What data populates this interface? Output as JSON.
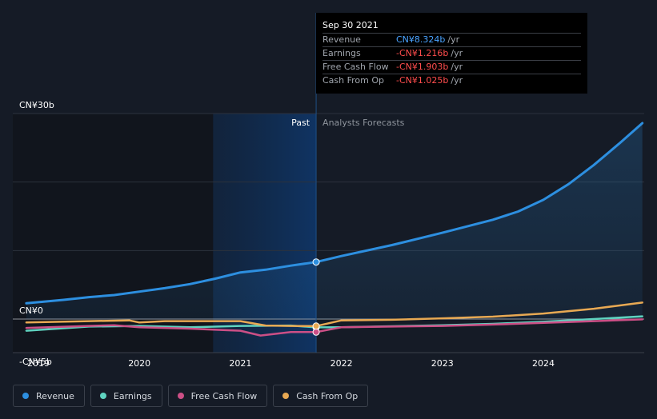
{
  "chart_data": {
    "type": "line",
    "title": "",
    "x_range": [
      2018.88,
      2024.98
    ],
    "ylim": [
      -5,
      30
    ],
    "y_tick_labels": [
      {
        "value": 30,
        "label": "CN¥30b"
      },
      {
        "value": 0,
        "label": "CN¥0"
      },
      {
        "value": -5,
        "label": "-CN¥5b"
      }
    ],
    "x_ticks": [
      {
        "value": 2019,
        "label": "2019"
      },
      {
        "value": 2020,
        "label": "2020"
      },
      {
        "value": 2021,
        "label": "2021"
      },
      {
        "value": 2022,
        "label": "2022"
      },
      {
        "value": 2023,
        "label": "2023"
      },
      {
        "value": 2024,
        "label": "2024"
      }
    ],
    "past_label": "Past",
    "forecast_label": "Analysts Forecasts",
    "past_region_start": 2020.73,
    "divider_x": 2021.75,
    "series": [
      {
        "name": "Revenue",
        "color": "#2d8fe0",
        "fill": true,
        "points": [
          [
            2018.88,
            2.3
          ],
          [
            2019.25,
            2.8
          ],
          [
            2019.5,
            3.2
          ],
          [
            2019.75,
            3.5
          ],
          [
            2020,
            4.0
          ],
          [
            2020.25,
            4.5
          ],
          [
            2020.5,
            5.1
          ],
          [
            2020.75,
            5.9
          ],
          [
            2021,
            6.8
          ],
          [
            2021.25,
            7.2
          ],
          [
            2021.5,
            7.8
          ],
          [
            2021.75,
            8.324
          ],
          [
            2022,
            9.2
          ],
          [
            2022.5,
            10.8
          ],
          [
            2023,
            12.6
          ],
          [
            2023.5,
            14.5
          ],
          [
            2023.75,
            15.7
          ],
          [
            2024,
            17.4
          ],
          [
            2024.25,
            19.7
          ],
          [
            2024.5,
            22.5
          ],
          [
            2024.75,
            25.6
          ],
          [
            2024.98,
            28.6
          ]
        ]
      },
      {
        "name": "Earnings",
        "color": "#5fd3c0",
        "fill": false,
        "points": [
          [
            2018.88,
            -1.7
          ],
          [
            2019.5,
            -1.1
          ],
          [
            2020,
            -1.0
          ],
          [
            2020.5,
            -1.2
          ],
          [
            2021,
            -1.0
          ],
          [
            2021.5,
            -0.95
          ],
          [
            2021.75,
            -1.216
          ],
          [
            2022,
            -1.2
          ],
          [
            2022.5,
            -1.05
          ],
          [
            2023,
            -0.9
          ],
          [
            2023.5,
            -0.7
          ],
          [
            2024,
            -0.4
          ],
          [
            2024.5,
            0.0
          ],
          [
            2024.98,
            0.4
          ]
        ]
      },
      {
        "name": "Free Cash Flow",
        "color": "#cc4f86",
        "fill": false,
        "points": [
          [
            2018.88,
            -1.3
          ],
          [
            2019.5,
            -1.0
          ],
          [
            2019.75,
            -0.9
          ],
          [
            2020,
            -1.2
          ],
          [
            2020.5,
            -1.4
          ],
          [
            2021,
            -1.7
          ],
          [
            2021.2,
            -2.4
          ],
          [
            2021.5,
            -1.9
          ],
          [
            2021.75,
            -1.903
          ],
          [
            2022,
            -1.2
          ],
          [
            2022.5,
            -1.1
          ],
          [
            2023,
            -1.0
          ],
          [
            2023.5,
            -0.8
          ],
          [
            2024,
            -0.55
          ],
          [
            2024.5,
            -0.3
          ],
          [
            2024.98,
            -0.05
          ]
        ]
      },
      {
        "name": "Cash From Op",
        "color": "#e8a953",
        "fill": false,
        "points": [
          [
            2018.88,
            -0.5
          ],
          [
            2019.5,
            -0.3
          ],
          [
            2019.9,
            -0.2
          ],
          [
            2020,
            -0.5
          ],
          [
            2020.25,
            -0.3
          ],
          [
            2020.75,
            -0.3
          ],
          [
            2021,
            -0.3
          ],
          [
            2021.25,
            -0.95
          ],
          [
            2021.5,
            -1.0
          ],
          [
            2021.75,
            -1.025
          ],
          [
            2022,
            -0.2
          ],
          [
            2022.5,
            -0.1
          ],
          [
            2023,
            0.1
          ],
          [
            2023.5,
            0.35
          ],
          [
            2024,
            0.8
          ],
          [
            2024.5,
            1.5
          ],
          [
            2024.98,
            2.4
          ]
        ]
      }
    ],
    "highlight": {
      "x": 2021.75,
      "values": [
        8.324,
        -1.216,
        -1.903,
        -1.025
      ]
    }
  },
  "tooltip": {
    "date": "Sep 30 2021",
    "rows": [
      {
        "label": "Revenue",
        "value": "CN¥8.324b",
        "unit": "/yr"
      },
      {
        "label": "Earnings",
        "value": "-CN¥1.216b",
        "unit": "/yr"
      },
      {
        "label": "Free Cash Flow",
        "value": "-CN¥1.903b",
        "unit": "/yr"
      },
      {
        "label": "Cash From Op",
        "value": "-CN¥1.025b",
        "unit": "/yr"
      }
    ]
  },
  "legend": [
    {
      "label": "Revenue",
      "color": "#2d8fe0"
    },
    {
      "label": "Earnings",
      "color": "#5fd3c0"
    },
    {
      "label": "Free Cash Flow",
      "color": "#cc4f86"
    },
    {
      "label": "Cash From Op",
      "color": "#e8a953"
    }
  ]
}
